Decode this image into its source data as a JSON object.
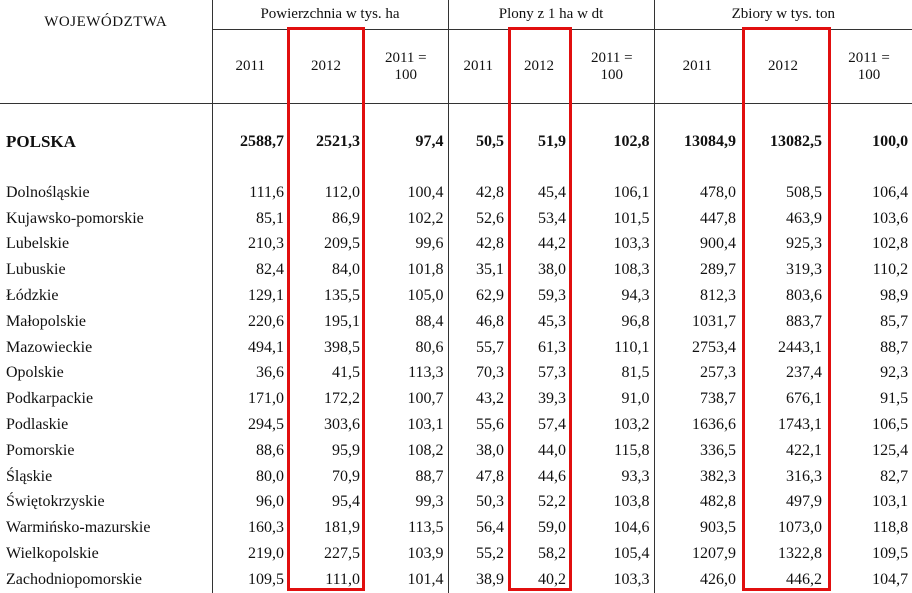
{
  "header": {
    "regions_label": "WOJEWÓDZTWA",
    "groups": [
      {
        "label": "Powierzchnia w tys. ha"
      },
      {
        "label": "Plony z 1 ha w dt"
      },
      {
        "label": "Zbiory w tys. ton"
      }
    ],
    "sub": {
      "year_a": "2011",
      "year_b": "2012",
      "index_line1": "2011 =",
      "index_line2": "100"
    }
  },
  "total": {
    "name": "POLSKA",
    "v": [
      "2588,7",
      "2521,3",
      "97,4",
      "50,5",
      "51,9",
      "102,8",
      "13084,9",
      "13082,5",
      "100,0"
    ]
  },
  "rows": [
    {
      "name": "Dolnośląskie",
      "v": [
        "111,6",
        "112,0",
        "100,4",
        "42,8",
        "45,4",
        "106,1",
        "478,0",
        "508,5",
        "106,4"
      ]
    },
    {
      "name": "Kujawsko-pomorskie",
      "v": [
        "85,1",
        "86,9",
        "102,2",
        "52,6",
        "53,4",
        "101,5",
        "447,8",
        "463,9",
        "103,6"
      ]
    },
    {
      "name": "Lubelskie",
      "v": [
        "210,3",
        "209,5",
        "99,6",
        "42,8",
        "44,2",
        "103,3",
        "900,4",
        "925,3",
        "102,8"
      ]
    },
    {
      "name": "Lubuskie",
      "v": [
        "82,4",
        "84,0",
        "101,8",
        "35,1",
        "38,0",
        "108,3",
        "289,7",
        "319,3",
        "110,2"
      ]
    },
    {
      "name": "Łódzkie",
      "v": [
        "129,1",
        "135,5",
        "105,0",
        "62,9",
        "59,3",
        "94,3",
        "812,3",
        "803,6",
        "98,9"
      ]
    },
    {
      "name": "Małopolskie",
      "v": [
        "220,6",
        "195,1",
        "88,4",
        "46,8",
        "45,3",
        "96,8",
        "1031,7",
        "883,7",
        "85,7"
      ]
    },
    {
      "name": "Mazowieckie",
      "v": [
        "494,1",
        "398,5",
        "80,6",
        "55,7",
        "61,3",
        "110,1",
        "2753,4",
        "2443,1",
        "88,7"
      ]
    },
    {
      "name": "Opolskie",
      "v": [
        "36,6",
        "41,5",
        "113,3",
        "70,3",
        "57,3",
        "81,5",
        "257,3",
        "237,4",
        "92,3"
      ]
    },
    {
      "name": "Podkarpackie",
      "v": [
        "171,0",
        "172,2",
        "100,7",
        "43,2",
        "39,3",
        "91,0",
        "738,7",
        "676,1",
        "91,5"
      ]
    },
    {
      "name": "Podlaskie",
      "v": [
        "294,5",
        "303,6",
        "103,1",
        "55,6",
        "57,4",
        "103,2",
        "1636,6",
        "1743,1",
        "106,5"
      ]
    },
    {
      "name": "Pomorskie",
      "v": [
        "88,6",
        "95,9",
        "108,2",
        "38,0",
        "44,0",
        "115,8",
        "336,5",
        "422,1",
        "125,4"
      ]
    },
    {
      "name": "Śląskie",
      "v": [
        "80,0",
        "70,9",
        "88,7",
        "47,8",
        "44,6",
        "93,3",
        "382,3",
        "316,3",
        "82,7"
      ]
    },
    {
      "name": "Świętokrzyskie",
      "v": [
        "96,0",
        "95,4",
        "99,3",
        "50,3",
        "52,2",
        "103,8",
        "482,8",
        "497,9",
        "103,1"
      ]
    },
    {
      "name": "Warmińsko-mazurskie",
      "v": [
        "160,3",
        "181,9",
        "113,5",
        "56,4",
        "59,0",
        "104,6",
        "903,5",
        "1073,0",
        "118,8"
      ]
    },
    {
      "name": "Wielkopolskie",
      "v": [
        "219,0",
        "227,5",
        "103,9",
        "55,2",
        "58,2",
        "105,4",
        "1207,9",
        "1322,8",
        "109,5"
      ]
    },
    {
      "name": "Zachodniopomorskie",
      "v": [
        "109,5",
        "111,0",
        "101,4",
        "38,9",
        "40,2",
        "103,3",
        "426,0",
        "446,2",
        "104,7"
      ]
    }
  ],
  "highlight_color": "#e10f0f"
}
